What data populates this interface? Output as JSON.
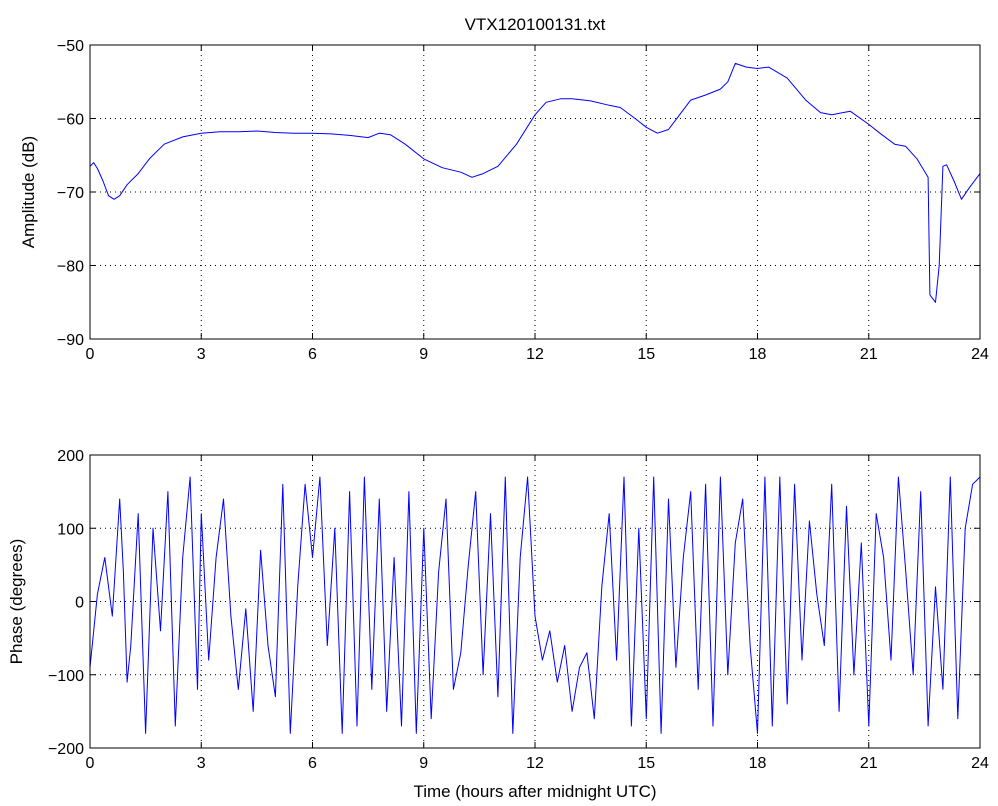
{
  "chart_data": [
    {
      "type": "line",
      "title": "VTX120100131.txt",
      "xlabel": "",
      "ylabel": "Amplitude (dB)",
      "xlim": [
        0,
        24
      ],
      "ylim": [
        -90,
        -50
      ],
      "xticks": [
        0,
        3,
        6,
        9,
        12,
        15,
        18,
        21,
        24
      ],
      "yticks": [
        -90,
        -80,
        -70,
        -60,
        -50
      ],
      "grid": true,
      "series": [
        {
          "color": "#0000ff",
          "x": [
            0,
            0.1,
            0.2,
            0.35,
            0.5,
            0.65,
            0.8,
            1.0,
            1.3,
            1.6,
            2.0,
            2.5,
            3.0,
            3.5,
            4.0,
            4.5,
            5.0,
            5.5,
            6.0,
            6.5,
            7.0,
            7.5,
            7.8,
            8.1,
            8.5,
            9.0,
            9.5,
            10.0,
            10.3,
            10.6,
            11.0,
            11.5,
            12.0,
            12.3,
            12.7,
            13.0,
            13.5,
            14.0,
            14.3,
            14.7,
            15.0,
            15.3,
            15.6,
            15.9,
            16.2,
            16.6,
            17.0,
            17.2,
            17.4,
            17.7,
            18.0,
            18.3,
            18.8,
            19.3,
            19.7,
            20.0,
            20.5,
            21.0,
            21.3,
            21.7,
            22.0,
            22.3,
            22.6,
            22.65,
            22.8,
            22.9,
            23.0,
            23.1,
            23.3,
            23.5,
            23.7,
            24.0
          ],
          "y": [
            -66.5,
            -66,
            -66.8,
            -68.5,
            -70.5,
            -71,
            -70.5,
            -69,
            -67.5,
            -65.5,
            -63.5,
            -62.5,
            -62,
            -61.8,
            -61.8,
            -61.7,
            -61.9,
            -62,
            -62,
            -62.1,
            -62.3,
            -62.6,
            -62,
            -62.2,
            -63.5,
            -65.5,
            -66.7,
            -67.3,
            -68,
            -67.5,
            -66.5,
            -63.5,
            -59.5,
            -57.8,
            -57.3,
            -57.3,
            -57.6,
            -58.2,
            -58.5,
            -60,
            -61.2,
            -62,
            -61.5,
            -59.5,
            -57.5,
            -56.8,
            -56,
            -55,
            -52.5,
            -53,
            -53.2,
            -53,
            -54.5,
            -57.5,
            -59.2,
            -59.5,
            -59,
            -60.8,
            -62,
            -63.5,
            -63.8,
            -65.5,
            -68,
            -84,
            -85,
            -80,
            -66.5,
            -66.3,
            -68.5,
            -71,
            -69.5,
            -67.5
          ]
        }
      ]
    },
    {
      "type": "line",
      "title": "",
      "xlabel": "Time (hours after midnight UTC)",
      "ylabel": "Phase (degrees)",
      "xlim": [
        0,
        24
      ],
      "ylim": [
        -200,
        200
      ],
      "xticks": [
        0,
        3,
        6,
        9,
        12,
        15,
        18,
        21,
        24
      ],
      "yticks": [
        -200,
        -100,
        0,
        100,
        200
      ],
      "grid": true,
      "series": [
        {
          "color": "#0000ff",
          "x": [
            0,
            0.2,
            0.4,
            0.6,
            0.8,
            0.9,
            1.0,
            1.1,
            1.3,
            1.5,
            1.7,
            1.9,
            2.1,
            2.3,
            2.5,
            2.7,
            2.9,
            3.0,
            3.2,
            3.4,
            3.6,
            3.8,
            4.0,
            4.2,
            4.4,
            4.6,
            4.8,
            5.0,
            5.2,
            5.4,
            5.6,
            5.8,
            6.0,
            6.2,
            6.4,
            6.6,
            6.8,
            7.0,
            7.2,
            7.4,
            7.6,
            7.8,
            8.0,
            8.2,
            8.4,
            8.6,
            8.8,
            9.0,
            9.2,
            9.4,
            9.6,
            9.8,
            10.0,
            10.2,
            10.4,
            10.6,
            10.8,
            11.0,
            11.2,
            11.4,
            11.6,
            11.8,
            12.0,
            12.2,
            12.4,
            12.6,
            12.8,
            13.0,
            13.2,
            13.4,
            13.6,
            13.8,
            14.0,
            14.2,
            14.4,
            14.6,
            14.8,
            15.0,
            15.2,
            15.4,
            15.6,
            15.8,
            16.0,
            16.2,
            16.4,
            16.6,
            16.8,
            17.0,
            17.2,
            17.4,
            17.6,
            17.8,
            18.0,
            18.2,
            18.4,
            18.6,
            18.8,
            19.0,
            19.2,
            19.4,
            19.6,
            19.8,
            20.0,
            20.2,
            20.4,
            20.6,
            20.8,
            21.0,
            21.2,
            21.4,
            21.6,
            21.8,
            22.0,
            22.2,
            22.4,
            22.6,
            22.8,
            23.0,
            23.2,
            23.4,
            23.6,
            23.8,
            24.0
          ],
          "y": [
            -90,
            10,
            60,
            -20,
            140,
            40,
            -110,
            -60,
            120,
            -180,
            100,
            -40,
            150,
            -170,
            60,
            170,
            -120,
            120,
            -80,
            60,
            140,
            -20,
            -120,
            -10,
            -150,
            70,
            -60,
            -130,
            160,
            -180,
            20,
            160,
            60,
            170,
            -60,
            100,
            -180,
            150,
            -170,
            170,
            -120,
            140,
            -150,
            60,
            -170,
            150,
            -180,
            100,
            -160,
            40,
            140,
            -120,
            -70,
            50,
            150,
            -100,
            120,
            -130,
            170,
            -180,
            60,
            170,
            -20,
            -80,
            -40,
            -110,
            -60,
            -150,
            -90,
            -70,
            -160,
            20,
            120,
            -80,
            170,
            -170,
            100,
            -160,
            170,
            -180,
            140,
            -90,
            60,
            150,
            -120,
            160,
            -170,
            170,
            -100,
            80,
            140,
            -60,
            -180,
            170,
            -170,
            170,
            -140,
            160,
            -80,
            110,
            10,
            -60,
            160,
            -150,
            130,
            -100,
            80,
            -170,
            120,
            60,
            -80,
            170,
            40,
            -100,
            150,
            -170,
            20,
            -120,
            170,
            -160,
            100,
            160,
            170
          ]
        }
      ]
    }
  ]
}
